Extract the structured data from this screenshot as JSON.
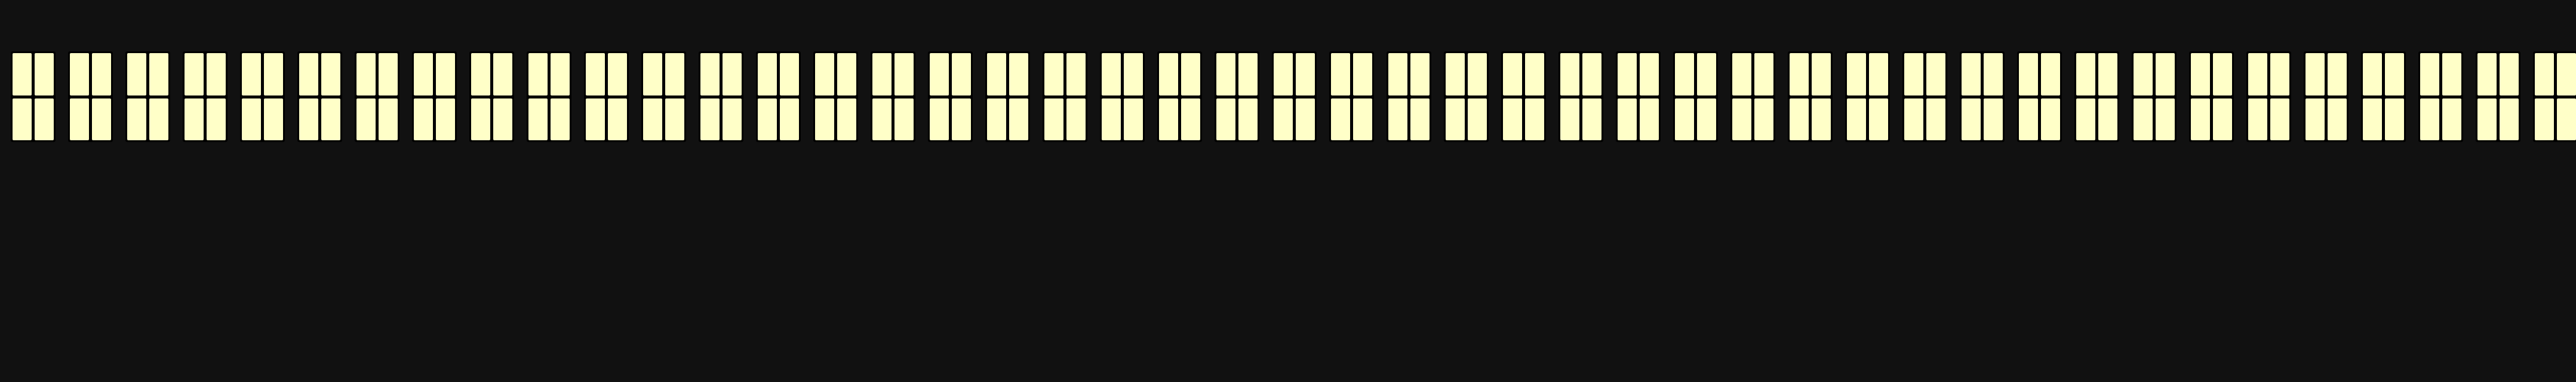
{
  "colors": {
    "background": "#111111",
    "frame": "#000000",
    "pane": "#ffffc8"
  },
  "window_count": 45,
  "panes_per_window": 4,
  "icon": "window-icon"
}
